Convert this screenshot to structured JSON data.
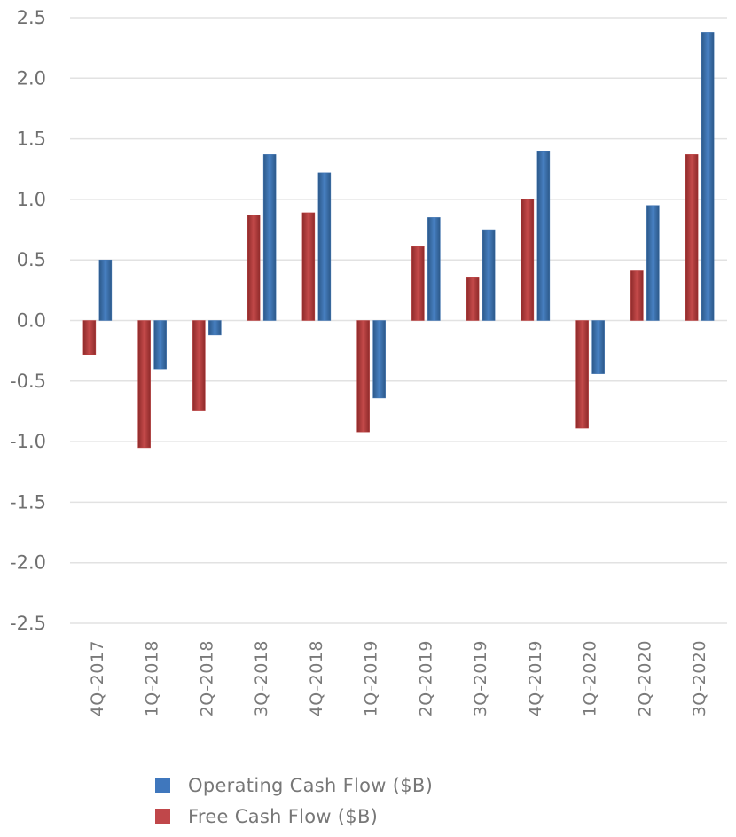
{
  "chart_data": {
    "type": "bar",
    "title": "",
    "xlabel": "",
    "ylabel": "",
    "ylim": [
      -2.5,
      2.5
    ],
    "yticks": [
      2.5,
      2.0,
      1.5,
      1.0,
      0.5,
      0.0,
      -0.5,
      -1.0,
      -1.5,
      -2.0,
      -2.5
    ],
    "ytick_labels": [
      "2.5",
      "2.0",
      "1.5",
      "1.0",
      "0.5",
      "0.0",
      "-0.5",
      "-1.0",
      "-1.5",
      "-2.0",
      "-2.5"
    ],
    "grid": true,
    "legend_position": "bottom",
    "categories": [
      "4Q-2017",
      "1Q-2018",
      "2Q-2018",
      "3Q-2018",
      "4Q-2018",
      "1Q-2019",
      "2Q-2019",
      "3Q-2019",
      "4Q-2019",
      "1Q-2020",
      "2Q-2020",
      "3Q-2020"
    ],
    "series": [
      {
        "name": "Free Cash Flow ($B)",
        "color": "#b83b3b",
        "values": [
          -0.28,
          -1.05,
          -0.74,
          0.87,
          0.89,
          -0.92,
          0.61,
          0.36,
          1.0,
          -0.89,
          0.41,
          1.37
        ]
      },
      {
        "name": "Operating Cash Flow ($B)",
        "color": "#3a6fae",
        "values": [
          0.5,
          -0.4,
          -0.12,
          1.37,
          1.22,
          -0.64,
          0.85,
          0.75,
          1.4,
          -0.44,
          0.95,
          2.38
        ]
      }
    ],
    "legend": [
      {
        "name": "Operating Cash Flow ($B)",
        "color": "#3f77bd"
      },
      {
        "name": "Free Cash Flow ($B)",
        "color": "#c0474a"
      }
    ]
  }
}
